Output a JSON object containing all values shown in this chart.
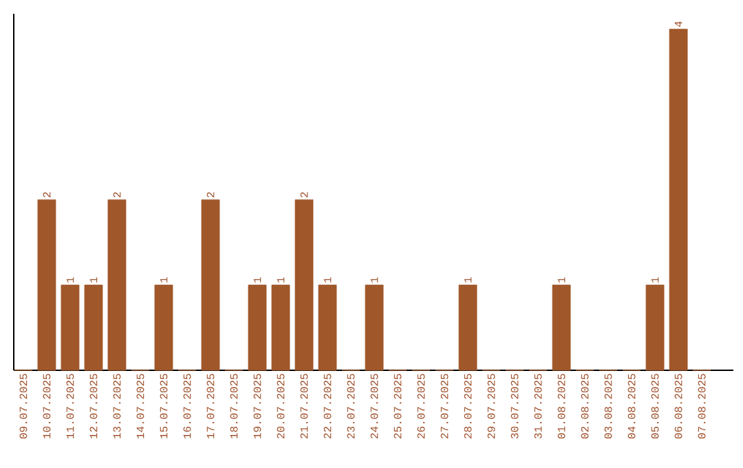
{
  "chart_data": {
    "type": "bar",
    "categories": [
      "09.07.2025",
      "10.07.2025",
      "11.07.2025",
      "12.07.2025",
      "13.07.2025",
      "14.07.2025",
      "15.07.2025",
      "16.07.2025",
      "17.07.2025",
      "18.07.2025",
      "19.07.2025",
      "20.07.2025",
      "21.07.2025",
      "22.07.2025",
      "23.07.2025",
      "24.07.2025",
      "25.07.2025",
      "26.07.2025",
      "27.07.2025",
      "28.07.2025",
      "29.07.2025",
      "30.07.2025",
      "31.07.2025",
      "01.08.2025",
      "02.08.2025",
      "03.08.2025",
      "04.08.2025",
      "05.08.2025",
      "06.08.2025",
      "07.08.2025"
    ],
    "values": [
      0,
      2,
      1,
      1,
      2,
      0,
      1,
      0,
      2,
      0,
      1,
      1,
      2,
      1,
      0,
      1,
      0,
      0,
      0,
      1,
      0,
      0,
      0,
      1,
      0,
      0,
      0,
      1,
      4,
      0
    ],
    "value_labels": [
      null,
      "2",
      "1",
      "1",
      "2",
      null,
      "1",
      null,
      "2",
      null,
      "1",
      "1",
      "2",
      "1",
      null,
      "1",
      null,
      null,
      null,
      "1",
      null,
      null,
      null,
      "1",
      null,
      null,
      null,
      "1",
      "4",
      null
    ],
    "color": "#a0572a",
    "ylim": [
      0,
      4
    ],
    "tick_labels": "x"
  }
}
